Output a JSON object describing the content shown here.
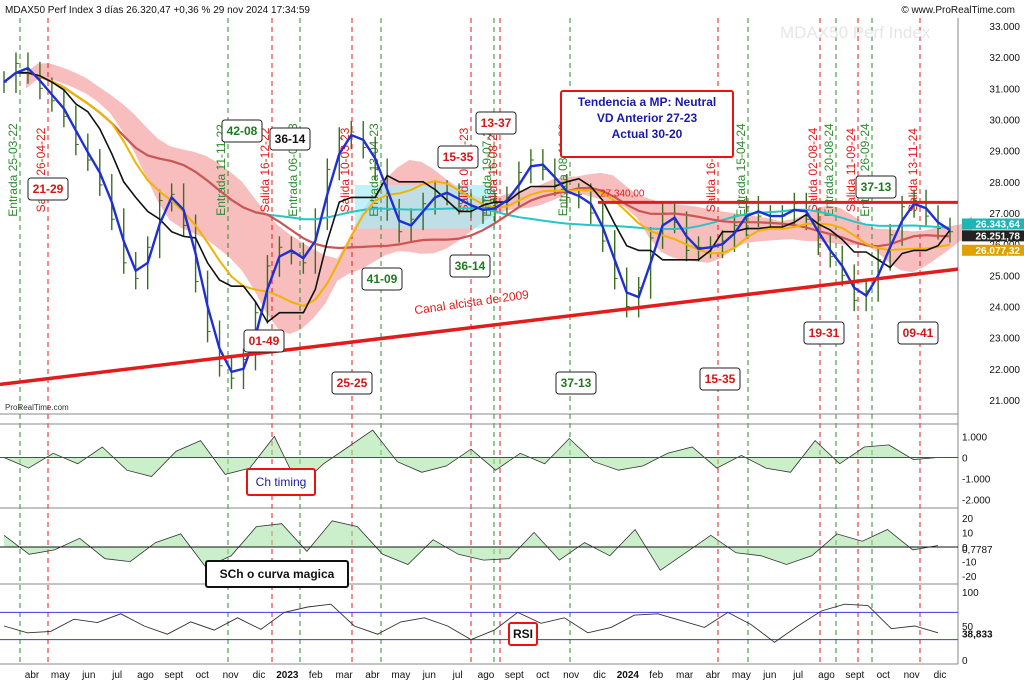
{
  "header": {
    "title": "MDAX50 Perf Index 3 días 26.320,47 +0,36 % 29 nov 2024 17:34:59",
    "brand": "© www.ProRealTime.com",
    "watermark": "MDAX50 Perf Index",
    "copyright": "ProRealTime.com"
  },
  "colors": {
    "price": "#3a6e1f",
    "fast_ma": "#1f2fd8",
    "avg_yellow": "#f0b400",
    "ma_salmon": "#cc5555",
    "ma_cyan": "#26c6c6",
    "donchian": "#111111",
    "cloud_red": "#f59a9a",
    "cloud_cyan": "#a8ecf6",
    "channel": "#e41b1b",
    "entrada": "#2e8b2e",
    "salida": "#e41b1b"
  },
  "annotations": {
    "tendencia": [
      "Tendencia a MP: Neutral",
      "VD Anterior 27-23",
      "Actual 30-20"
    ],
    "canal": "Canal alcista de 2009",
    "resistance_label": "27.340,00",
    "ch_timing": "Ch timing",
    "sch": "SCh o curva magica",
    "rsi": "RSI",
    "cycle_labels": [
      {
        "text": "21-29",
        "color": "red"
      },
      {
        "text": "42-08",
        "color": "green"
      },
      {
        "text": "36-14",
        "color": "black"
      },
      {
        "text": "01-49",
        "color": "red"
      },
      {
        "text": "25-25",
        "color": "red"
      },
      {
        "text": "41-09",
        "color": "green"
      },
      {
        "text": "15-35",
        "color": "red"
      },
      {
        "text": "13-37",
        "color": "red"
      },
      {
        "text": "36-14",
        "color": "green"
      },
      {
        "text": "37-13",
        "color": "green"
      },
      {
        "text": "15-35",
        "color": "red"
      },
      {
        "text": "19-31",
        "color": "red"
      },
      {
        "text": "37-13",
        "color": "green"
      },
      {
        "text": "09-41",
        "color": "red"
      }
    ],
    "signal_lines": [
      {
        "text": "Entrada 25-03-22",
        "type": "entrada"
      },
      {
        "text": "Salida 26-04-22",
        "type": "salida"
      },
      {
        "text": "Entrada 11-11-22",
        "type": "entrada"
      },
      {
        "text": "Salida 16-12-22",
        "type": "salida"
      },
      {
        "text": "Entrada 06-01-23",
        "type": "entrada"
      },
      {
        "text": "Salida 10-03-23",
        "type": "salida"
      },
      {
        "text": "Entrada 13-04-23",
        "type": "entrada"
      },
      {
        "text": "Salida 06-07-23",
        "type": "salida"
      },
      {
        "text": "Entrada 19-07-23",
        "type": "entrada"
      },
      {
        "text": "Salida 16-08-23",
        "type": "salida"
      },
      {
        "text": "Entrada 08-11-23",
        "type": "entrada"
      },
      {
        "text": "Salida 16-04-24",
        "type": "salida"
      },
      {
        "text": "Entrada 15-04-24",
        "type": "entrada"
      },
      {
        "text": "Salida 02-08-24",
        "type": "salida"
      },
      {
        "text": "Entrada 20-08-24",
        "type": "entrada"
      },
      {
        "text": "Salida 11-09-24",
        "type": "salida"
      },
      {
        "text": "Entrada 26-09-24",
        "type": "entrada"
      },
      {
        "text": "Salida 13-11-24",
        "type": "salida"
      }
    ]
  },
  "chart_data": {
    "type": "line",
    "x_labels": [
      "abr",
      "may",
      "jun",
      "jul",
      "ago",
      "sept",
      "oct",
      "nov",
      "dic",
      "2023",
      "feb",
      "mar",
      "abr",
      "may",
      "jun",
      "jul",
      "ago",
      "sept",
      "oct",
      "nov",
      "dic",
      "2024",
      "feb",
      "mar",
      "abr",
      "may",
      "jun",
      "jul",
      "ago",
      "sept",
      "oct",
      "nov",
      "dic"
    ],
    "price_axis": {
      "ticks": [
        "33.000",
        "32.000",
        "31.000",
        "30.000",
        "29.000",
        "28.000",
        "27.000",
        "26.000",
        "25.000",
        "24.000",
        "23.000",
        "22.000",
        "21.000"
      ],
      "ylim": [
        21000,
        33000
      ]
    },
    "last_values": {
      "ma_cyan": "26.343,64",
      "close": "26.251,78",
      "ma_yellow": "26.077,32"
    },
    "resistance_level": 27340,
    "price_series": [
      31200,
      31800,
      31500,
      31000,
      30600,
      30100,
      29200,
      28700,
      27900,
      26800,
      25400,
      24900,
      25900,
      27400,
      27600,
      26600,
      24800,
      23200,
      22100,
      21700,
      22300,
      23800,
      25300,
      25900,
      25700,
      25400,
      26800,
      28400,
      29400,
      29600,
      29100,
      28400,
      27100,
      26400,
      26800,
      27300,
      27700,
      27600,
      27300,
      27200,
      27000,
      27300,
      27500,
      28300,
      28700,
      28400,
      27900,
      27500,
      27600,
      27000,
      26100,
      24900,
      24000,
      24600,
      26200,
      27000,
      26700,
      25800,
      25900,
      25900,
      26100,
      26600,
      27200,
      26900,
      26900,
      26900,
      27300,
      26800,
      26000,
      25600,
      25000,
      24200,
      24500,
      25500,
      26300,
      27200,
      27400,
      26900,
      26500,
      26400
    ],
    "ch_timing": {
      "ticks": [
        "1.000",
        "0",
        "-1.000",
        "-2.000"
      ],
      "ylim": [
        -2300,
        1400
      ],
      "values": [
        0,
        -500,
        200,
        -300,
        500,
        -600,
        -900,
        300,
        800,
        -800,
        -500,
        1000,
        -1400,
        -300,
        500,
        1300,
        -200,
        -700,
        -400,
        400,
        -600,
        200,
        -300,
        900,
        -200,
        -600,
        -400,
        200,
        500,
        -500,
        100,
        -500,
        -700,
        800,
        -300,
        500,
        600,
        -100,
        0
      ]
    },
    "sch": {
      "ticks": [
        "20",
        "10",
        "0",
        "-10",
        "-20"
      ],
      "ylim": [
        -24,
        24
      ],
      "last": "0,7787",
      "values": [
        8,
        -5,
        -2,
        6,
        -8,
        -10,
        3,
        9,
        -14,
        -6,
        14,
        16,
        -3,
        18,
        14,
        -5,
        -12,
        5,
        -5,
        -9,
        -8,
        10,
        -9,
        3,
        -6,
        12,
        -16,
        -4,
        8,
        -4,
        -6,
        -12,
        -6,
        9,
        4,
        12,
        -2,
        1
      ]
    },
    "rsi": {
      "ticks": [
        "100",
        "50",
        "0"
      ],
      "ylim": [
        0,
        100
      ],
      "levels": [
        70,
        30
      ],
      "last": "38,833",
      "values": [
        50,
        40,
        42,
        60,
        55,
        68,
        50,
        38,
        56,
        44,
        62,
        45,
        70,
        78,
        82,
        50,
        38,
        56,
        62,
        50,
        30,
        44,
        70,
        54,
        62,
        40,
        48,
        66,
        68,
        58,
        48,
        70,
        52,
        26,
        50,
        72,
        82,
        80,
        46,
        50,
        40
      ]
    }
  }
}
